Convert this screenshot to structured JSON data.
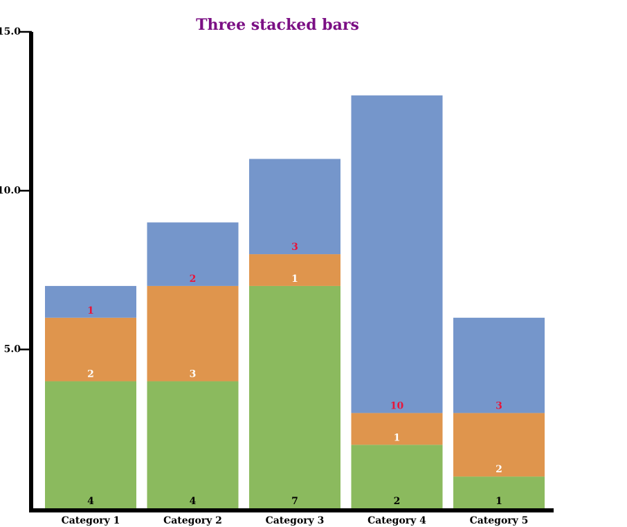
{
  "chart_data": {
    "type": "bar",
    "stacked": true,
    "title": "Three stacked bars",
    "title_color": "#7B0F84",
    "categories": [
      "Category 1",
      "Category 2",
      "Category 3",
      "Category 4",
      "Category 5"
    ],
    "ylim": [
      0,
      15
    ],
    "yticks": [
      "5.0",
      "10.0",
      "15.0"
    ],
    "ytick_values": [
      5,
      10,
      15
    ],
    "grid": false,
    "series": [
      {
        "values": [
          4,
          4,
          7,
          2,
          1
        ],
        "color": "#8BBA5E",
        "label_color": "#000000"
      },
      {
        "values": [
          2,
          3,
          1,
          1,
          2
        ],
        "color": "#DF954D",
        "label_color": "#FFFFFF"
      },
      {
        "values": [
          1,
          2,
          3,
          10,
          3
        ],
        "color": "#7596CB",
        "label_color": "#E8153A"
      }
    ]
  }
}
